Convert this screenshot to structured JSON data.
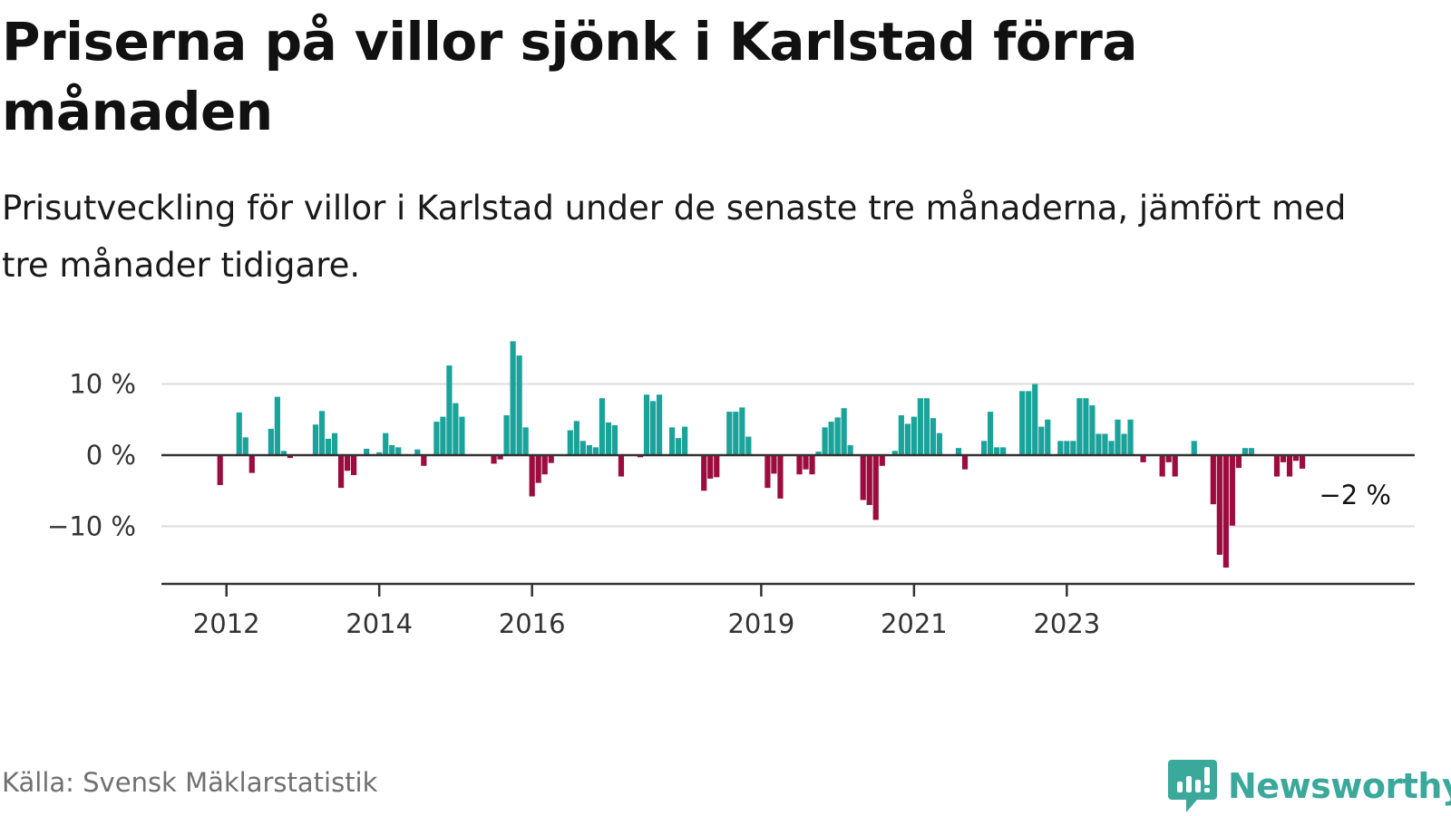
{
  "title": "Priserna på villor sjönk i Karlstad förra månaden",
  "subtitle": "Prisutveckling för villor i Karlstad under de senaste tre månaderna, jämfört med tre månader tidigare.",
  "source": "Källa: Svensk Mäklarstatistik",
  "brand": {
    "name": "Newsworthy",
    "icon": "newsworthy-bar-chart-icon",
    "color": "#3aa89a"
  },
  "colors": {
    "positive": "#1aa39a",
    "negative": "#9c0c3f",
    "grid": "#dddddd",
    "axis": "#333333"
  },
  "chart_data": {
    "type": "bar",
    "title": "",
    "xlabel": "",
    "ylabel": "",
    "ylim": [
      -18,
      18
    ],
    "y_ticks": [
      10,
      0,
      -10
    ],
    "y_tick_labels": [
      "10 %",
      "0 %",
      "−10 %"
    ],
    "x_ticks": [
      "2012",
      "2014",
      "2016",
      "2019",
      "2021",
      "2023"
    ],
    "x_tick_dates": [
      "2012-01",
      "2014-01",
      "2016-01",
      "2019-01",
      "2021-01",
      "2023-01"
    ],
    "grid": true,
    "start": "2011-03",
    "end_label": "−2 %",
    "values": [
      null,
      null,
      null,
      null,
      null,
      null,
      null,
      null,
      null,
      -4.2,
      null,
      null,
      6.0,
      2.5,
      -2.5,
      null,
      null,
      3.7,
      8.2,
      0.6,
      -0.4,
      null,
      null,
      null,
      4.3,
      6.2,
      2.3,
      3.1,
      -4.6,
      -2.2,
      -2.8,
      null,
      0.9,
      null,
      0.4,
      3.1,
      1.4,
      1.1,
      null,
      null,
      0.8,
      -1.5,
      null,
      4.7,
      5.4,
      12.6,
      7.3,
      5.4,
      null,
      null,
      null,
      null,
      -1.2,
      -0.6,
      5.6,
      16.0,
      14.0,
      3.9,
      -5.8,
      -3.9,
      -2.7,
      -1.1,
      null,
      null,
      3.5,
      4.8,
      2.0,
      1.4,
      1.1,
      8.0,
      4.6,
      4.2,
      -3.0,
      null,
      null,
      -0.3,
      8.5,
      7.6,
      8.5,
      null,
      3.9,
      2.4,
      4.0,
      null,
      null,
      -5.0,
      -3.3,
      -3.1,
      null,
      6.1,
      6.1,
      6.7,
      2.6,
      null,
      null,
      -4.6,
      -2.6,
      -6.1,
      null,
      null,
      -2.7,
      -2.0,
      -2.7,
      0.5,
      3.9,
      4.7,
      5.3,
      6.6,
      1.4,
      null,
      -6.3,
      -7.0,
      -9.1,
      -1.5,
      null,
      0.6,
      5.6,
      4.4,
      5.4,
      8.0,
      8.0,
      5.2,
      3.1,
      null,
      null,
      1.0,
      -2.0,
      null,
      null,
      2.0,
      6.1,
      1.1,
      1.1,
      null,
      null,
      9.0,
      9.0,
      10.0,
      4.0,
      5.0,
      null,
      2.0,
      2.0,
      2.0,
      8.0,
      8.0,
      7.0,
      3.0,
      3.0,
      2.0,
      5.0,
      3.0,
      5.0,
      null,
      -1.0,
      null,
      null,
      -3.0,
      -1.0,
      -3.0,
      null,
      null,
      2.0,
      null,
      null,
      -6.9,
      -14.0,
      -15.8,
      -9.9,
      -1.8,
      1.0,
      1.0,
      null,
      null,
      null,
      -3.0,
      -1.0,
      -3.0,
      -0.8,
      -1.9
    ]
  }
}
